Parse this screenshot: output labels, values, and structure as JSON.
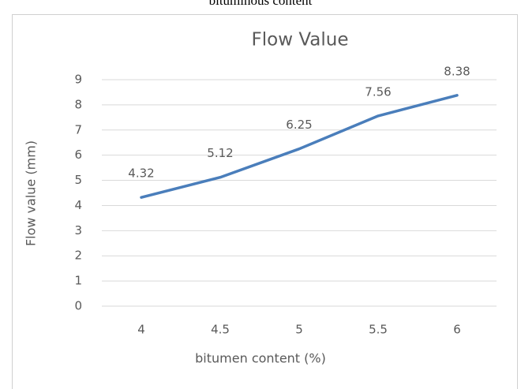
{
  "caption": "bituminous content",
  "chart_data": {
    "type": "line",
    "title": "Flow Value",
    "x_label": "bitumen content (%)",
    "y_label": "Flow value (mm)",
    "categories": [
      "4",
      "4.5",
      "5",
      "5.5",
      "6"
    ],
    "series": [
      {
        "name": "Flow value",
        "color": "#4a7ebb",
        "values": [
          4.32,
          5.12,
          6.25,
          7.56,
          8.38
        ]
      }
    ],
    "ylim": [
      0,
      9
    ],
    "yticks": [
      0,
      1,
      2,
      3,
      4,
      5,
      6,
      7,
      8,
      9
    ],
    "grid": true,
    "data_labels": true
  }
}
